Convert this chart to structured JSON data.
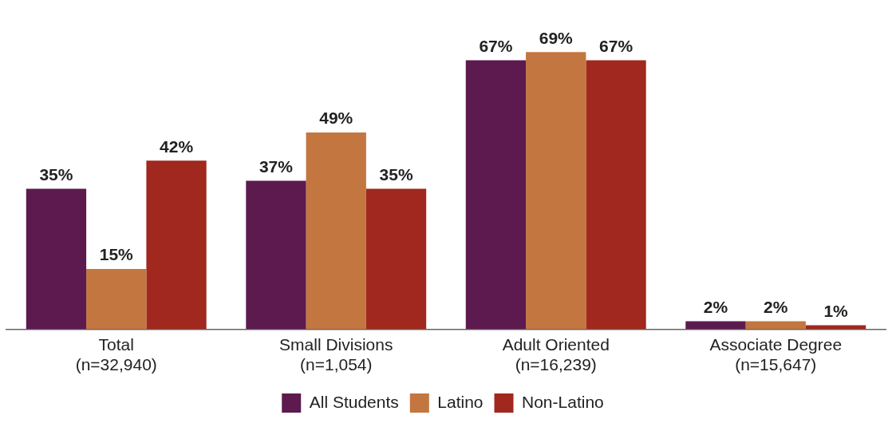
{
  "chart_data": {
    "type": "bar",
    "categories": [
      "Total\n(n=32,940)",
      "Small Divisions\n(n=1,054)",
      "Adult Oriented\n(n=16,239)",
      "Associate Degree\n(n=15,647)"
    ],
    "series": [
      {
        "name": "All Students",
        "color": "#5c1a4e",
        "values": [
          35,
          37,
          67,
          2
        ],
        "value_labels": [
          "35%",
          "37%",
          "67%",
          "2%"
        ]
      },
      {
        "name": "Latino",
        "color": "#c3763f",
        "values": [
          15,
          49,
          69,
          2
        ],
        "value_labels": [
          "15%",
          "49%",
          "69%",
          "2%"
        ]
      },
      {
        "name": "Non-Latino",
        "color": "#a0281e",
        "values": [
          42,
          35,
          67,
          1
        ],
        "value_labels": [
          "42%",
          "35%",
          "67%",
          "1%"
        ]
      }
    ],
    "grid": false,
    "legend": "bottom",
    "tick_labels": "x"
  }
}
